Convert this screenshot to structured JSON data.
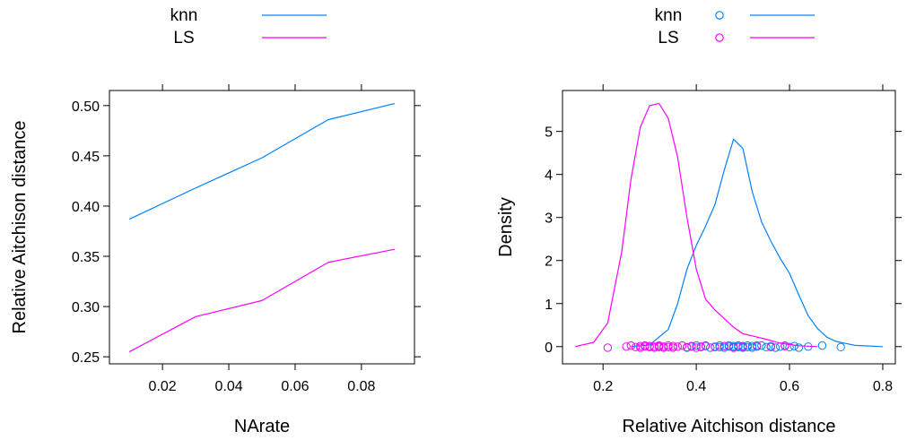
{
  "colors": {
    "knn": "#0080ff",
    "LS": "#ff00ff",
    "axis": "#000000"
  },
  "chart_data": [
    {
      "type": "line",
      "xlabel": "NArate",
      "ylabel": "Relative Aitchison distance",
      "xlim": [
        0.004,
        0.096
      ],
      "ylim": [
        0.243,
        0.515
      ],
      "xticks": [
        0.02,
        0.04,
        0.06,
        0.08
      ],
      "xtick_labels": [
        "0.02",
        "0.04",
        "0.06",
        "0.08"
      ],
      "yticks": [
        0.25,
        0.3,
        0.35,
        0.4,
        0.45,
        0.5
      ],
      "ytick_labels": [
        "0.25",
        "0.30",
        "0.35",
        "0.40",
        "0.45",
        "0.50"
      ],
      "legend_position": "top",
      "x": [
        0.01,
        0.03,
        0.05,
        0.07,
        0.09
      ],
      "series": [
        {
          "name": "knn",
          "values": [
            0.387,
            0.418,
            0.448,
            0.486,
            0.502
          ]
        },
        {
          "name": "LS",
          "values": [
            0.255,
            0.29,
            0.306,
            0.344,
            0.357
          ]
        }
      ]
    },
    {
      "type": "density",
      "xlabel": "Relative Aitchison distance",
      "ylabel": "Density",
      "xlim": [
        0.113,
        0.827
      ],
      "ylim": [
        -0.4,
        5.95
      ],
      "xticks": [
        0.2,
        0.4,
        0.6,
        0.8
      ],
      "xtick_labels": [
        "0.2",
        "0.4",
        "0.6",
        "0.8"
      ],
      "yticks": [
        0,
        1,
        2,
        3,
        4,
        5
      ],
      "ytick_labels": [
        "0",
        "1",
        "2",
        "3",
        "4",
        "5"
      ],
      "legend_position": "top",
      "series": [
        {
          "name": "knn",
          "density_x": [
            0.26,
            0.3,
            0.34,
            0.36,
            0.38,
            0.4,
            0.42,
            0.44,
            0.46,
            0.48,
            0.5,
            0.52,
            0.54,
            0.56,
            0.58,
            0.6,
            0.62,
            0.64,
            0.66,
            0.68,
            0.7,
            0.74,
            0.8
          ],
          "density_y": [
            0.0,
            0.04,
            0.4,
            1.0,
            1.8,
            2.35,
            2.8,
            3.3,
            4.1,
            4.82,
            4.6,
            3.6,
            2.9,
            2.45,
            2.05,
            1.7,
            1.2,
            0.72,
            0.42,
            0.22,
            0.12,
            0.03,
            0.0
          ],
          "points": [
            0.38,
            0.39,
            0.4,
            0.41,
            0.42,
            0.43,
            0.44,
            0.45,
            0.45,
            0.46,
            0.46,
            0.47,
            0.47,
            0.48,
            0.48,
            0.48,
            0.49,
            0.49,
            0.49,
            0.5,
            0.5,
            0.5,
            0.51,
            0.51,
            0.52,
            0.52,
            0.53,
            0.54,
            0.55,
            0.56,
            0.57,
            0.58,
            0.59,
            0.6,
            0.61,
            0.62,
            0.64,
            0.67,
            0.71
          ]
        },
        {
          "name": "LS",
          "density_x": [
            0.14,
            0.18,
            0.21,
            0.24,
            0.26,
            0.28,
            0.3,
            0.32,
            0.34,
            0.36,
            0.38,
            0.4,
            0.42,
            0.44,
            0.46,
            0.48,
            0.5,
            0.52,
            0.55,
            0.58,
            0.62,
            0.66
          ],
          "density_y": [
            0.0,
            0.1,
            0.55,
            2.2,
            3.9,
            5.1,
            5.6,
            5.65,
            5.3,
            4.4,
            3.0,
            1.8,
            1.1,
            0.85,
            0.65,
            0.45,
            0.3,
            0.25,
            0.17,
            0.08,
            0.02,
            0.0
          ],
          "points": [
            0.21,
            0.25,
            0.26,
            0.27,
            0.28,
            0.28,
            0.29,
            0.29,
            0.3,
            0.3,
            0.31,
            0.31,
            0.32,
            0.32,
            0.32,
            0.33,
            0.33,
            0.34,
            0.34,
            0.35,
            0.35,
            0.36,
            0.37,
            0.38,
            0.39,
            0.4,
            0.41,
            0.42,
            0.44,
            0.46,
            0.48,
            0.5,
            0.53,
            0.56,
            0.59
          ]
        }
      ]
    }
  ]
}
